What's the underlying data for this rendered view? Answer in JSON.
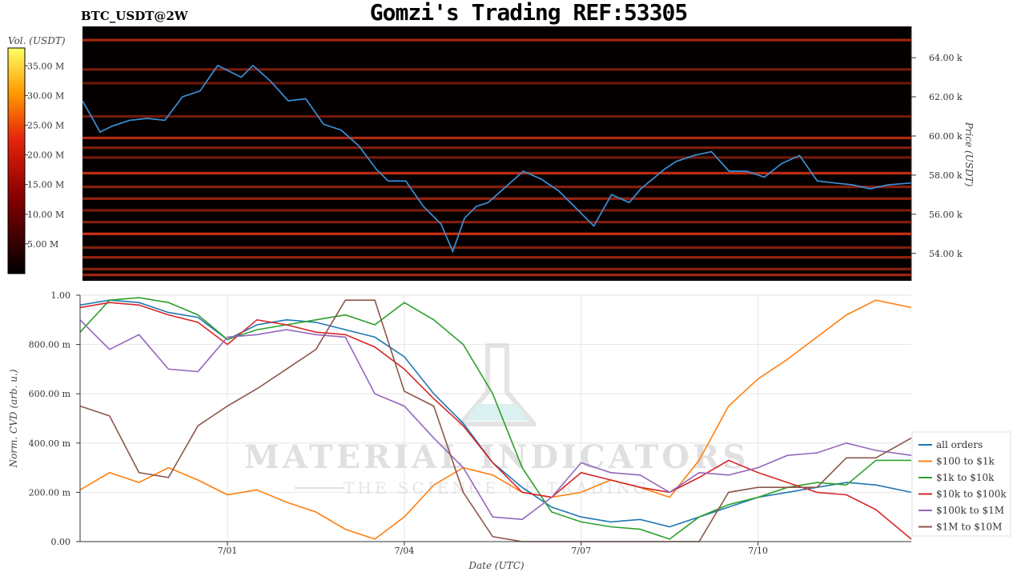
{
  "header": {
    "title": "Gomzi's Trading REF:53305",
    "pair": "BTC_USDT@2W"
  },
  "watermark": {
    "brand": "MATERIAL INDICATORS",
    "tagline": "THE SCIENCE OF TRADING"
  },
  "colors": {
    "price_line": "#3a8fd8",
    "series": [
      "#1f77b4",
      "#ff7f0e",
      "#2ca02c",
      "#d62728",
      "#9467bd",
      "#8c564b"
    ],
    "heatmap_bg": "#050000",
    "heatmap_hot": "#ff3b1a"
  },
  "chart_data": [
    {
      "type": "heatmap",
      "colorbar": {
        "label": "Vol. (USDT)",
        "ticks": [
          "5.00 M",
          "10.00 M",
          "15.00 M",
          "20.00 M",
          "25.00 M",
          "30.00 M",
          "35.00 M"
        ],
        "range": [
          0,
          38
        ]
      },
      "ylabel": "Price (USDT)",
      "y_ticks": [
        "54.00 k",
        "56.00 k",
        "58.00 k",
        "60.00 k",
        "62.00 k",
        "64.00 k"
      ],
      "ylim": [
        52.6,
        65.6
      ],
      "xlim": [
        -1.8,
        12.3
      ],
      "liquidity_levels": [
        {
          "price": 64.9,
          "vol": 14
        },
        {
          "price": 63.4,
          "vol": 8
        },
        {
          "price": 62.7,
          "vol": 6
        },
        {
          "price": 61.0,
          "vol": 7
        },
        {
          "price": 59.9,
          "vol": 16
        },
        {
          "price": 59.4,
          "vol": 9
        },
        {
          "price": 58.9,
          "vol": 7
        },
        {
          "price": 58.1,
          "vol": 18
        },
        {
          "price": 57.4,
          "vol": 10
        },
        {
          "price": 56.8,
          "vol": 12
        },
        {
          "price": 56.2,
          "vol": 8
        },
        {
          "price": 55.6,
          "vol": 9
        },
        {
          "price": 55.0,
          "vol": 20
        },
        {
          "price": 54.3,
          "vol": 9
        },
        {
          "price": 53.8,
          "vol": 12
        },
        {
          "price": 53.2,
          "vol": 10
        },
        {
          "price": 52.9,
          "vol": 14
        }
      ],
      "price_series": {
        "x": [
          -1.8,
          -1.5,
          -1.3,
          -1.0,
          -0.7,
          -0.4,
          -0.1,
          0.2,
          0.5,
          0.9,
          1.1,
          1.4,
          1.7,
          2.0,
          2.3,
          2.6,
          2.9,
          3.2,
          3.4,
          3.7,
          4.0,
          4.3,
          4.5,
          4.7,
          4.9,
          5.1,
          5.4,
          5.7,
          6.0,
          6.3,
          6.6,
          6.9,
          7.2,
          7.5,
          7.7,
          7.9,
          8.1,
          8.3,
          8.6,
          8.9,
          9.2,
          9.5,
          9.8,
          10.1,
          10.4,
          10.7,
          11.0,
          11.3,
          11.6,
          11.9,
          12.3
        ],
        "y": [
          61.8,
          60.2,
          60.5,
          60.8,
          60.9,
          60.8,
          62.0,
          62.3,
          63.6,
          63.0,
          63.6,
          62.8,
          61.8,
          61.9,
          60.6,
          60.3,
          59.5,
          58.3,
          57.7,
          57.7,
          56.4,
          55.5,
          54.1,
          55.8,
          56.4,
          56.6,
          57.4,
          58.2,
          57.8,
          57.2,
          56.3,
          55.4,
          57.0,
          56.6,
          57.3,
          57.8,
          58.3,
          58.7,
          59.0,
          59.2,
          58.2,
          58.2,
          57.9,
          58.6,
          59.0,
          57.7,
          57.6,
          57.5,
          57.3,
          57.5,
          57.6
        ]
      }
    },
    {
      "type": "line",
      "xlabel": "Date (UTC)",
      "ylabel": "Norm. CVD (arb. u.)",
      "x_ticks": [
        "7/01",
        "7/04",
        "7/07",
        "7/10"
      ],
      "xlim": [
        -2.5,
        11.6
      ],
      "ylim": [
        0,
        1
      ],
      "y_ticks": [
        "0.00",
        "200.00 m",
        "400.00 m",
        "600.00 m",
        "800.00 m",
        "1.00"
      ],
      "legend_position": "bottom-right",
      "x": [
        -2.5,
        -2.0,
        -1.5,
        -1.0,
        -0.5,
        0.0,
        0.5,
        1.0,
        1.5,
        2.0,
        2.5,
        3.0,
        3.5,
        4.0,
        4.5,
        5.0,
        5.5,
        6.0,
        6.5,
        7.0,
        7.5,
        8.0,
        8.5,
        9.0,
        9.5,
        10.0,
        10.5,
        11.0,
        11.6
      ],
      "series": [
        {
          "name": "all orders",
          "values": [
            0.96,
            0.98,
            0.97,
            0.93,
            0.91,
            0.82,
            0.88,
            0.9,
            0.89,
            0.86,
            0.83,
            0.75,
            0.6,
            0.48,
            0.32,
            0.22,
            0.14,
            0.1,
            0.08,
            0.09,
            0.06,
            0.1,
            0.14,
            0.18,
            0.2,
            0.22,
            0.24,
            0.23,
            0.2
          ]
        },
        {
          "name": "$100 to $1k",
          "values": [
            0.21,
            0.28,
            0.24,
            0.3,
            0.25,
            0.19,
            0.21,
            0.16,
            0.12,
            0.05,
            0.01,
            0.1,
            0.23,
            0.3,
            0.27,
            0.2,
            0.18,
            0.2,
            0.25,
            0.22,
            0.18,
            0.33,
            0.55,
            0.66,
            0.74,
            0.83,
            0.92,
            0.98,
            0.95
          ]
        },
        {
          "name": "$1k to $10k",
          "values": [
            0.85,
            0.98,
            0.99,
            0.97,
            0.92,
            0.82,
            0.86,
            0.88,
            0.9,
            0.92,
            0.88,
            0.97,
            0.9,
            0.8,
            0.6,
            0.3,
            0.12,
            0.08,
            0.06,
            0.05,
            0.01,
            0.1,
            0.15,
            0.18,
            0.22,
            0.24,
            0.23,
            0.33,
            0.33
          ]
        },
        {
          "name": "$10k to $100k",
          "values": [
            0.95,
            0.97,
            0.96,
            0.92,
            0.89,
            0.8,
            0.9,
            0.88,
            0.85,
            0.84,
            0.79,
            0.7,
            0.58,
            0.47,
            0.32,
            0.2,
            0.18,
            0.28,
            0.25,
            0.22,
            0.2,
            0.26,
            0.33,
            0.28,
            0.24,
            0.2,
            0.19,
            0.13,
            0.01
          ]
        },
        {
          "name": "$100k to $1M",
          "values": [
            0.9,
            0.78,
            0.84,
            0.7,
            0.69,
            0.83,
            0.84,
            0.86,
            0.84,
            0.83,
            0.6,
            0.55,
            0.42,
            0.3,
            0.1,
            0.09,
            0.18,
            0.32,
            0.28,
            0.27,
            0.2,
            0.28,
            0.27,
            0.3,
            0.35,
            0.36,
            0.4,
            0.37,
            0.35
          ]
        },
        {
          "name": "$1M to $10M",
          "values": [
            0.55,
            0.51,
            0.28,
            0.26,
            0.47,
            0.55,
            0.62,
            0.7,
            0.78,
            0.98,
            0.98,
            0.61,
            0.55,
            0.2,
            0.02,
            0.0,
            0.0,
            0.0,
            0.0,
            0.0,
            0.0,
            0.0,
            0.2,
            0.22,
            0.22,
            0.22,
            0.34,
            0.34,
            0.42
          ]
        }
      ]
    }
  ]
}
